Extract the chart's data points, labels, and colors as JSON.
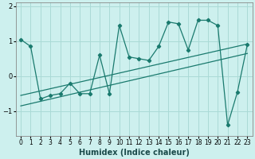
{
  "xlabel": "Humidex (Indice chaleur)",
  "ylabel": "",
  "bg_color": "#cdf0ee",
  "grid_color": "#aadad6",
  "line_color": "#1a7a6e",
  "x_values": [
    0,
    1,
    2,
    3,
    4,
    5,
    6,
    7,
    8,
    9,
    10,
    11,
    12,
    13,
    14,
    15,
    16,
    17,
    18,
    19,
    20,
    21,
    22,
    23
  ],
  "y_main": [
    1.05,
    0.85,
    -0.65,
    -0.55,
    -0.5,
    -0.2,
    -0.5,
    -0.5,
    0.6,
    -0.5,
    1.45,
    0.55,
    0.5,
    0.45,
    0.85,
    1.55,
    1.5,
    0.75,
    1.6,
    1.6,
    1.45,
    -1.4,
    -0.45,
    0.9
  ],
  "trend1_start": -0.55,
  "trend1_end": 0.92,
  "trend2_start": -0.85,
  "trend2_end": 0.65,
  "ylim": [
    -1.7,
    2.1
  ],
  "yticks": [
    -1,
    0,
    1,
    2
  ],
  "xlim": [
    -0.5,
    23.5
  ],
  "tick_fontsize": 6,
  "xlabel_fontsize": 7
}
